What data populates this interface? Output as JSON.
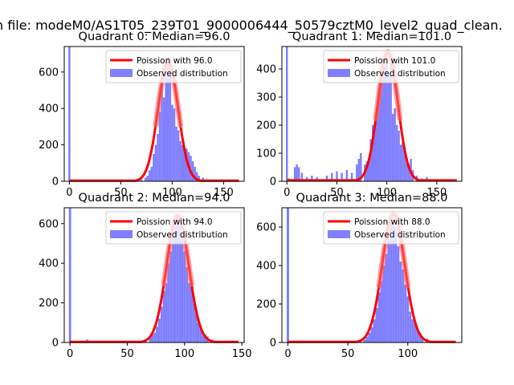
{
  "figure_title": "n file: modeM0/AS1T05_239T01_9000006444_50579cztM0_level2_quad_clean.",
  "colors": {
    "hist": "#7f7fff",
    "poisson": "#ff0000",
    "axis": "#000000"
  },
  "chart_data": [
    {
      "type": "bar",
      "title": "Quadrant 0: Median=96.0",
      "median": 96.0,
      "xlim": [
        -5,
        170
      ],
      "ylim": [
        0,
        740
      ],
      "xticks": [
        0,
        50,
        100,
        150
      ],
      "yticks": [
        0,
        200,
        400,
        600
      ],
      "legend": [
        "Poission with 96.0",
        "Observed distribution"
      ],
      "spike_at_zero": 740,
      "bins": [
        [
          0,
          10
        ],
        [
          15,
          5
        ],
        [
          20,
          3
        ],
        [
          45,
          3
        ],
        [
          55,
          4
        ],
        [
          60,
          5
        ],
        [
          65,
          8
        ],
        [
          70,
          10
        ],
        [
          74,
          20
        ],
        [
          76,
          30
        ],
        [
          78,
          60
        ],
        [
          80,
          80
        ],
        [
          82,
          150
        ],
        [
          84,
          200
        ],
        [
          86,
          260
        ],
        [
          88,
          380
        ],
        [
          90,
          600
        ],
        [
          92,
          460
        ],
        [
          94,
          580
        ],
        [
          96,
          680
        ],
        [
          98,
          640
        ],
        [
          100,
          420
        ],
        [
          102,
          400
        ],
        [
          104,
          300
        ],
        [
          106,
          280
        ],
        [
          108,
          220
        ],
        [
          110,
          200
        ],
        [
          112,
          170
        ],
        [
          114,
          180
        ],
        [
          116,
          160
        ],
        [
          118,
          140
        ],
        [
          120,
          110
        ],
        [
          122,
          80
        ],
        [
          124,
          50
        ],
        [
          126,
          30
        ],
        [
          130,
          20
        ],
        [
          135,
          10
        ]
      ],
      "curve_mean": 96.0,
      "curve_sigma": 9.8,
      "curve_peak": 656
    },
    {
      "type": "bar",
      "title": "Quadrant 1: Median=101.0",
      "median": 101.0,
      "xlim": [
        -5,
        175
      ],
      "ylim": [
        0,
        480
      ],
      "xticks": [
        0,
        50,
        100,
        150
      ],
      "yticks": [
        0,
        100,
        200,
        300,
        400
      ],
      "legend": [
        "Poission with 101.0",
        "Observed distribution"
      ],
      "spike_at_zero": 480,
      "bins": [
        [
          2,
          10
        ],
        [
          8,
          50
        ],
        [
          10,
          60
        ],
        [
          12,
          50
        ],
        [
          15,
          30
        ],
        [
          20,
          15
        ],
        [
          25,
          20
        ],
        [
          30,
          15
        ],
        [
          40,
          20
        ],
        [
          45,
          30
        ],
        [
          50,
          35
        ],
        [
          55,
          30
        ],
        [
          60,
          40
        ],
        [
          65,
          30
        ],
        [
          70,
          60
        ],
        [
          72,
          80
        ],
        [
          74,
          100
        ],
        [
          78,
          60
        ],
        [
          80,
          70
        ],
        [
          82,
          70
        ],
        [
          84,
          150
        ],
        [
          86,
          200
        ],
        [
          88,
          190
        ],
        [
          90,
          260
        ],
        [
          92,
          320
        ],
        [
          94,
          400
        ],
        [
          96,
          420
        ],
        [
          98,
          410
        ],
        [
          100,
          450
        ],
        [
          102,
          380
        ],
        [
          104,
          420
        ],
        [
          106,
          240
        ],
        [
          108,
          260
        ],
        [
          110,
          200
        ],
        [
          112,
          180
        ],
        [
          114,
          130
        ],
        [
          116,
          160
        ],
        [
          118,
          120
        ],
        [
          120,
          80
        ],
        [
          122,
          60
        ],
        [
          124,
          80
        ],
        [
          126,
          40
        ],
        [
          130,
          20
        ],
        [
          135,
          10
        ],
        [
          140,
          15
        ]
      ],
      "curve_mean": 101.0,
      "curve_sigma": 10.0,
      "curve_peak": 460
    },
    {
      "type": "bar",
      "title": "Quadrant 2: Median=94.0",
      "median": 94.0,
      "xlim": [
        -5,
        152
      ],
      "ylim": [
        0,
        680
      ],
      "xticks": [
        0,
        50,
        100,
        150
      ],
      "yticks": [
        0,
        200,
        400,
        600
      ],
      "legend": [
        "Poission with 94.0",
        "Observed distribution"
      ],
      "spike_at_zero": 680,
      "bins": [
        [
          15,
          15
        ],
        [
          58,
          3
        ],
        [
          62,
          8
        ],
        [
          66,
          15
        ],
        [
          70,
          30
        ],
        [
          72,
          40
        ],
        [
          74,
          50
        ],
        [
          76,
          80
        ],
        [
          78,
          120
        ],
        [
          80,
          180
        ],
        [
          82,
          260
        ],
        [
          84,
          300
        ],
        [
          86,
          400
        ],
        [
          88,
          460
        ],
        [
          90,
          540
        ],
        [
          92,
          600
        ],
        [
          94,
          640
        ],
        [
          96,
          620
        ],
        [
          98,
          540
        ],
        [
          100,
          460
        ],
        [
          102,
          380
        ],
        [
          104,
          300
        ],
        [
          106,
          280
        ],
        [
          108,
          220
        ],
        [
          110,
          160
        ],
        [
          112,
          100
        ],
        [
          114,
          70
        ],
        [
          116,
          50
        ],
        [
          118,
          40
        ],
        [
          120,
          30
        ],
        [
          124,
          15
        ],
        [
          130,
          8
        ]
      ],
      "curve_mean": 94.0,
      "curve_sigma": 9.7,
      "curve_peak": 640
    },
    {
      "type": "bar",
      "title": "Quadrant 3: Median=88.0",
      "median": 88.0,
      "xlim": [
        -5,
        145
      ],
      "ylim": [
        0,
        700
      ],
      "xticks": [
        0,
        50,
        100
      ],
      "yticks": [
        0,
        200,
        400,
        600
      ],
      "legend": [
        "Poission with 88.0",
        "Observed distribution"
      ],
      "spike_at_zero": 700,
      "bins": [
        [
          12,
          10
        ],
        [
          18,
          8
        ],
        [
          55,
          4
        ],
        [
          60,
          8
        ],
        [
          64,
          15
        ],
        [
          66,
          30
        ],
        [
          68,
          50
        ],
        [
          70,
          80
        ],
        [
          72,
          120
        ],
        [
          74,
          180
        ],
        [
          76,
          260
        ],
        [
          78,
          320
        ],
        [
          80,
          400
        ],
        [
          82,
          460
        ],
        [
          84,
          540
        ],
        [
          86,
          660
        ],
        [
          88,
          640
        ],
        [
          90,
          600
        ],
        [
          92,
          500
        ],
        [
          94,
          420
        ],
        [
          96,
          380
        ],
        [
          98,
          300
        ],
        [
          100,
          240
        ],
        [
          102,
          160
        ],
        [
          104,
          120
        ],
        [
          106,
          100
        ],
        [
          108,
          70
        ],
        [
          110,
          50
        ],
        [
          112,
          30
        ],
        [
          116,
          20
        ],
        [
          120,
          10
        ],
        [
          125,
          5
        ]
      ],
      "curve_mean": 88.0,
      "curve_sigma": 9.4,
      "curve_peak": 668
    }
  ]
}
